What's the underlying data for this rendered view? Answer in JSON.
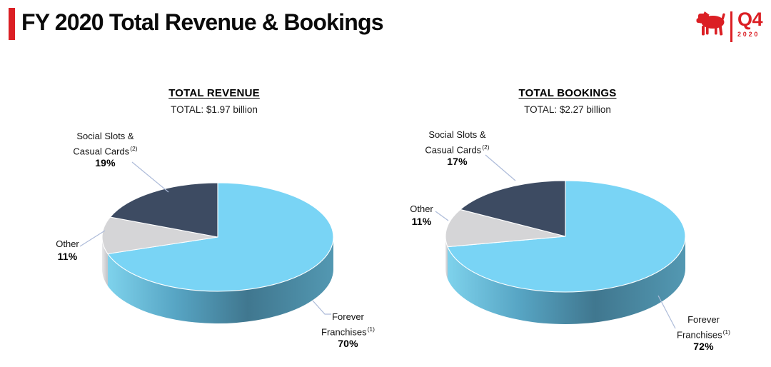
{
  "slide": {
    "title": "FY 2020 Total Revenue & Bookings",
    "background_color": "#FFFFFF",
    "accent_red": "#DB1F24"
  },
  "logo": {
    "icon": "zynga-dog-icon",
    "quarter": "Q4",
    "year": "2020",
    "color": "#DB1F24"
  },
  "chart_data": [
    {
      "type": "pie",
      "style": "3d",
      "title": "TOTAL REVENUE",
      "total_label": "TOTAL: $1.97 billion",
      "total_value_billion_usd": 1.97,
      "start_angle_deg": 0,
      "direction": "clockwise",
      "slices": [
        {
          "label": "Forever Franchises",
          "pct": 70,
          "pct_label": "70%",
          "color": "#79D4F5"
        },
        {
          "label": "Other",
          "pct": 11,
          "pct_label": "11%",
          "color": "#D5D5D7"
        },
        {
          "label": "Social Slots & Casual Cards",
          "pct": 19,
          "pct_label": "19%",
          "color": "#3D4B62"
        }
      ],
      "callouts": {
        "social": {
          "line1": "Social Slots &",
          "line2": "Casual Cards",
          "sup": "(2)"
        },
        "other": {
          "line1": "Other"
        },
        "forever": {
          "line1": "Forever",
          "line2": "Franchises",
          "sup": "(1)"
        }
      },
      "legend": false
    },
    {
      "type": "pie",
      "style": "3d",
      "title": "TOTAL BOOKINGS",
      "total_label": "TOTAL: $2.27 billion",
      "total_value_billion_usd": 2.27,
      "start_angle_deg": 0,
      "direction": "clockwise",
      "slices": [
        {
          "label": "Forever Franchises",
          "pct": 72,
          "pct_label": "72%",
          "color": "#79D4F5"
        },
        {
          "label": "Other",
          "pct": 11,
          "pct_label": "11%",
          "color": "#D5D5D7"
        },
        {
          "label": "Social Slots & Casual Cards",
          "pct": 17,
          "pct_label": "17%",
          "color": "#3D4B62"
        }
      ],
      "callouts": {
        "social": {
          "line1": "Social Slots &",
          "line2": "Casual Cards",
          "sup": "(2)"
        },
        "other": {
          "line1": "Other"
        },
        "forever": {
          "line1": "Forever",
          "line2": "Franchises",
          "sup": "(1)"
        }
      },
      "legend": false
    }
  ]
}
